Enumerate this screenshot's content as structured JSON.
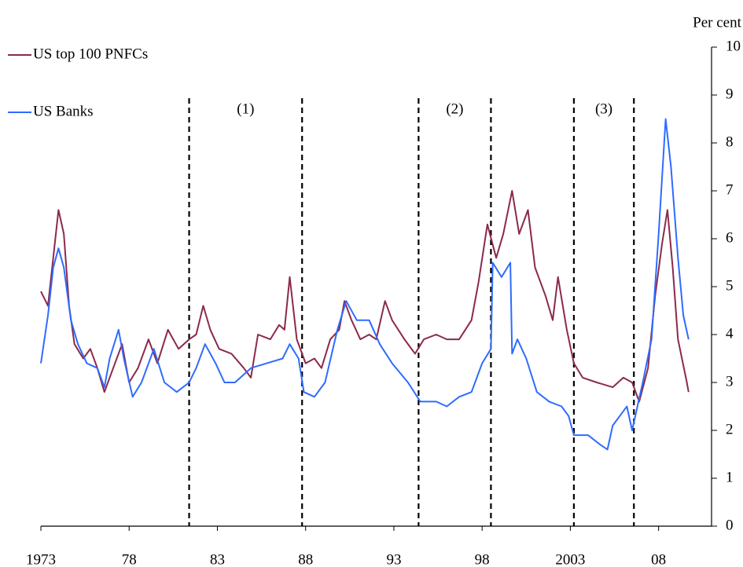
{
  "chart_data": {
    "type": "line",
    "y_axis_label": "Per cent",
    "xlim": [
      1973,
      2011
    ],
    "ylim": [
      0,
      10
    ],
    "yticks": [
      0,
      1,
      2,
      3,
      4,
      5,
      6,
      7,
      8,
      9,
      10
    ],
    "xticks": [
      {
        "value": 1973,
        "label": "1973"
      },
      {
        "value": 1978,
        "label": "78"
      },
      {
        "value": 1983,
        "label": "83"
      },
      {
        "value": 1988,
        "label": "88"
      },
      {
        "value": 1993,
        "label": "93"
      },
      {
        "value": 1998,
        "label": "98"
      },
      {
        "value": 2003,
        "label": "2003"
      },
      {
        "value": 2008,
        "label": "08"
      }
    ],
    "periods": [
      {
        "label": "(1)",
        "start": 1981.4,
        "end": 1987.8
      },
      {
        "label": "(2)",
        "start": 1994.4,
        "end": 1998.5
      },
      {
        "label": "(3)",
        "start": 2003.2,
        "end": 2006.6
      }
    ],
    "series": [
      {
        "name": "US top 100 PNFCs",
        "color": "#8b2a4a",
        "x": [
          1973.0,
          1973.4,
          1973.7,
          1974.0,
          1974.3,
          1974.6,
          1974.9,
          1975.4,
          1975.8,
          1976.2,
          1976.6,
          1977.1,
          1977.6,
          1978.0,
          1978.5,
          1979.1,
          1979.6,
          1980.2,
          1980.8,
          1981.4,
          1981.8,
          1982.2,
          1982.6,
          1983.1,
          1983.8,
          1984.5,
          1984.9,
          1985.3,
          1986.0,
          1986.5,
          1986.8,
          1987.1,
          1987.5,
          1988.0,
          1988.5,
          1988.9,
          1989.4,
          1989.9,
          1990.2,
          1990.6,
          1991.1,
          1991.6,
          1992.0,
          1992.5,
          1992.9,
          1993.6,
          1994.2,
          1994.7,
          1995.4,
          1996.0,
          1996.7,
          1997.4,
          1997.8,
          1998.3,
          1998.8,
          1999.2,
          1999.7,
          2000.1,
          2000.6,
          2001.0,
          2001.6,
          2002.0,
          2002.3,
          2002.8,
          2003.2,
          2003.7,
          2004.5,
          2005.4,
          2006.0,
          2006.5,
          2006.9,
          2007.4,
          2007.8,
          2008.2,
          2008.5,
          2008.8,
          2009.1,
          2009.6,
          2009.7
        ],
        "values": [
          4.9,
          4.6,
          5.6,
          6.6,
          6.1,
          4.6,
          3.8,
          3.5,
          3.7,
          3.3,
          2.8,
          3.3,
          3.8,
          3.0,
          3.3,
          3.9,
          3.4,
          4.1,
          3.7,
          3.9,
          4.0,
          4.6,
          4.1,
          3.7,
          3.6,
          3.3,
          3.1,
          4.0,
          3.9,
          4.2,
          4.1,
          5.2,
          3.9,
          3.4,
          3.5,
          3.3,
          3.9,
          4.1,
          4.7,
          4.3,
          3.9,
          4.0,
          3.9,
          4.7,
          4.3,
          3.9,
          3.6,
          3.9,
          4.0,
          3.9,
          3.9,
          4.3,
          5.1,
          6.3,
          5.6,
          6.1,
          7.0,
          6.1,
          6.6,
          5.4,
          4.8,
          4.3,
          5.2,
          4.1,
          3.4,
          3.1,
          3.0,
          2.9,
          3.1,
          3.0,
          2.6,
          3.3,
          4.8,
          5.9,
          6.6,
          5.4,
          3.9,
          3.0,
          2.8
        ]
      },
      {
        "name": "US Banks",
        "color": "#2f6bff",
        "x": [
          1973.0,
          1973.4,
          1973.7,
          1974.0,
          1974.3,
          1974.7,
          1975.1,
          1975.6,
          1976.2,
          1976.6,
          1976.9,
          1977.4,
          1977.7,
          1978.2,
          1978.7,
          1979.4,
          1980.0,
          1980.7,
          1981.4,
          1981.8,
          1982.3,
          1982.9,
          1983.4,
          1984.0,
          1984.9,
          1985.8,
          1986.7,
          1987.1,
          1987.6,
          1987.9,
          1988.5,
          1989.1,
          1989.8,
          1990.3,
          1990.9,
          1991.6,
          1992.2,
          1992.9,
          1993.8,
          1994.5,
          1995.4,
          1996.0,
          1996.7,
          1997.4,
          1998.0,
          1998.5,
          1998.6,
          1999.1,
          1999.6,
          1999.7,
          2000.0,
          2000.5,
          2001.1,
          2001.8,
          2002.5,
          2002.9,
          2003.2,
          2004.0,
          2004.7,
          2005.1,
          2005.4,
          2005.8,
          2006.2,
          2006.5,
          2006.8,
          2007.1,
          2007.6,
          2008.0,
          2008.4,
          2008.7,
          2009.1,
          2009.4,
          2009.7
        ],
        "values": [
          3.4,
          4.4,
          5.4,
          5.8,
          5.4,
          4.3,
          3.8,
          3.4,
          3.3,
          2.9,
          3.5,
          4.1,
          3.5,
          2.7,
          3.0,
          3.7,
          3.0,
          2.8,
          3.0,
          3.3,
          3.8,
          3.4,
          3.0,
          3.0,
          3.3,
          3.4,
          3.5,
          3.8,
          3.5,
          2.8,
          2.7,
          3.0,
          4.1,
          4.7,
          4.3,
          4.3,
          3.8,
          3.4,
          3.0,
          2.6,
          2.6,
          2.5,
          2.7,
          2.8,
          3.4,
          3.7,
          5.5,
          5.2,
          5.5,
          3.6,
          3.9,
          3.5,
          2.8,
          2.6,
          2.5,
          2.3,
          1.9,
          1.9,
          1.7,
          1.6,
          2.1,
          2.3,
          2.5,
          2.0,
          2.5,
          3.0,
          3.9,
          6.1,
          8.5,
          7.5,
          5.6,
          4.4,
          3.9
        ]
      }
    ]
  }
}
